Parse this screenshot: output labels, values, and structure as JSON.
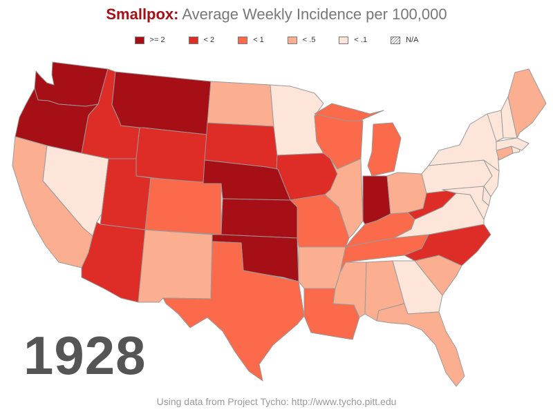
{
  "title": {
    "disease": "Smallpox:",
    "rest": " Average Weekly Incidence per 100,000",
    "disease_color": "#a50f15",
    "rest_color": "#777777"
  },
  "legend": [
    {
      "label": ">= 2",
      "color": "#a50f15"
    },
    {
      "label": "< 2",
      "color": "#de2d26"
    },
    {
      "label": "< 1",
      "color": "#fb6a4a"
    },
    {
      "label": "< .5",
      "color": "#fcae91"
    },
    {
      "label": "< .1",
      "color": "#fee5d9"
    },
    {
      "label": "N/A",
      "color": "hatch"
    }
  ],
  "year": "1928",
  "footer": "Using data from Project Tycho: http://www.tycho.pitt.edu",
  "map_data": {
    "states": [
      {
        "name": "Washington",
        "category": ">= 2"
      },
      {
        "name": "Oregon",
        "category": ">= 2"
      },
      {
        "name": "Montana",
        "category": ">= 2"
      },
      {
        "name": "Nebraska",
        "category": ">= 2"
      },
      {
        "name": "Kansas",
        "category": ">= 2"
      },
      {
        "name": "Oklahoma",
        "category": ">= 2"
      },
      {
        "name": "Indiana",
        "category": ">= 2"
      },
      {
        "name": "Idaho",
        "category": "< 2"
      },
      {
        "name": "Wyoming",
        "category": "< 2"
      },
      {
        "name": "Utah",
        "category": "< 2"
      },
      {
        "name": "Arizona",
        "category": "< 2"
      },
      {
        "name": "South Dakota",
        "category": "< 2"
      },
      {
        "name": "Iowa",
        "category": "< 2"
      },
      {
        "name": "West Virginia",
        "category": "< 2"
      },
      {
        "name": "North Carolina",
        "category": "< 2"
      },
      {
        "name": "Colorado",
        "category": "< 1"
      },
      {
        "name": "Texas",
        "category": "< 1"
      },
      {
        "name": "Missouri",
        "category": "< 1"
      },
      {
        "name": "Louisiana",
        "category": "< 1"
      },
      {
        "name": "Wisconsin",
        "category": "< 1"
      },
      {
        "name": "Michigan",
        "category": "< 1"
      },
      {
        "name": "Kentucky",
        "category": "< 1"
      },
      {
        "name": "Tennessee",
        "category": "< 1"
      },
      {
        "name": "California",
        "category": "< .5"
      },
      {
        "name": "New Mexico",
        "category": "< .5"
      },
      {
        "name": "North Dakota",
        "category": "< .5"
      },
      {
        "name": "Illinois",
        "category": "< .5"
      },
      {
        "name": "Ohio",
        "category": "< .5"
      },
      {
        "name": "Arkansas",
        "category": "< .5"
      },
      {
        "name": "Mississippi",
        "category": "< .5"
      },
      {
        "name": "Alabama",
        "category": "< .5"
      },
      {
        "name": "Florida",
        "category": "< .5"
      },
      {
        "name": "South Carolina",
        "category": "< .5"
      },
      {
        "name": "Maine",
        "category": "< .5"
      },
      {
        "name": "Connecticut",
        "category": "< .5"
      },
      {
        "name": "Nevada",
        "category": "< .1"
      },
      {
        "name": "Minnesota",
        "category": "< .1"
      },
      {
        "name": "Georgia",
        "category": "< .1"
      },
      {
        "name": "Virginia",
        "category": "< .1"
      },
      {
        "name": "Pennsylvania",
        "category": "< .1"
      },
      {
        "name": "New York",
        "category": "< .1"
      },
      {
        "name": "New Jersey",
        "category": "< .1"
      },
      {
        "name": "Maryland",
        "category": "< .1"
      },
      {
        "name": "Delaware",
        "category": "< .1"
      },
      {
        "name": "Vermont",
        "category": "< .1"
      },
      {
        "name": "New Hampshire",
        "category": "< .1"
      },
      {
        "name": "Massachusetts",
        "category": "< .1"
      },
      {
        "name": "Rhode Island",
        "category": "< .1"
      }
    ]
  }
}
